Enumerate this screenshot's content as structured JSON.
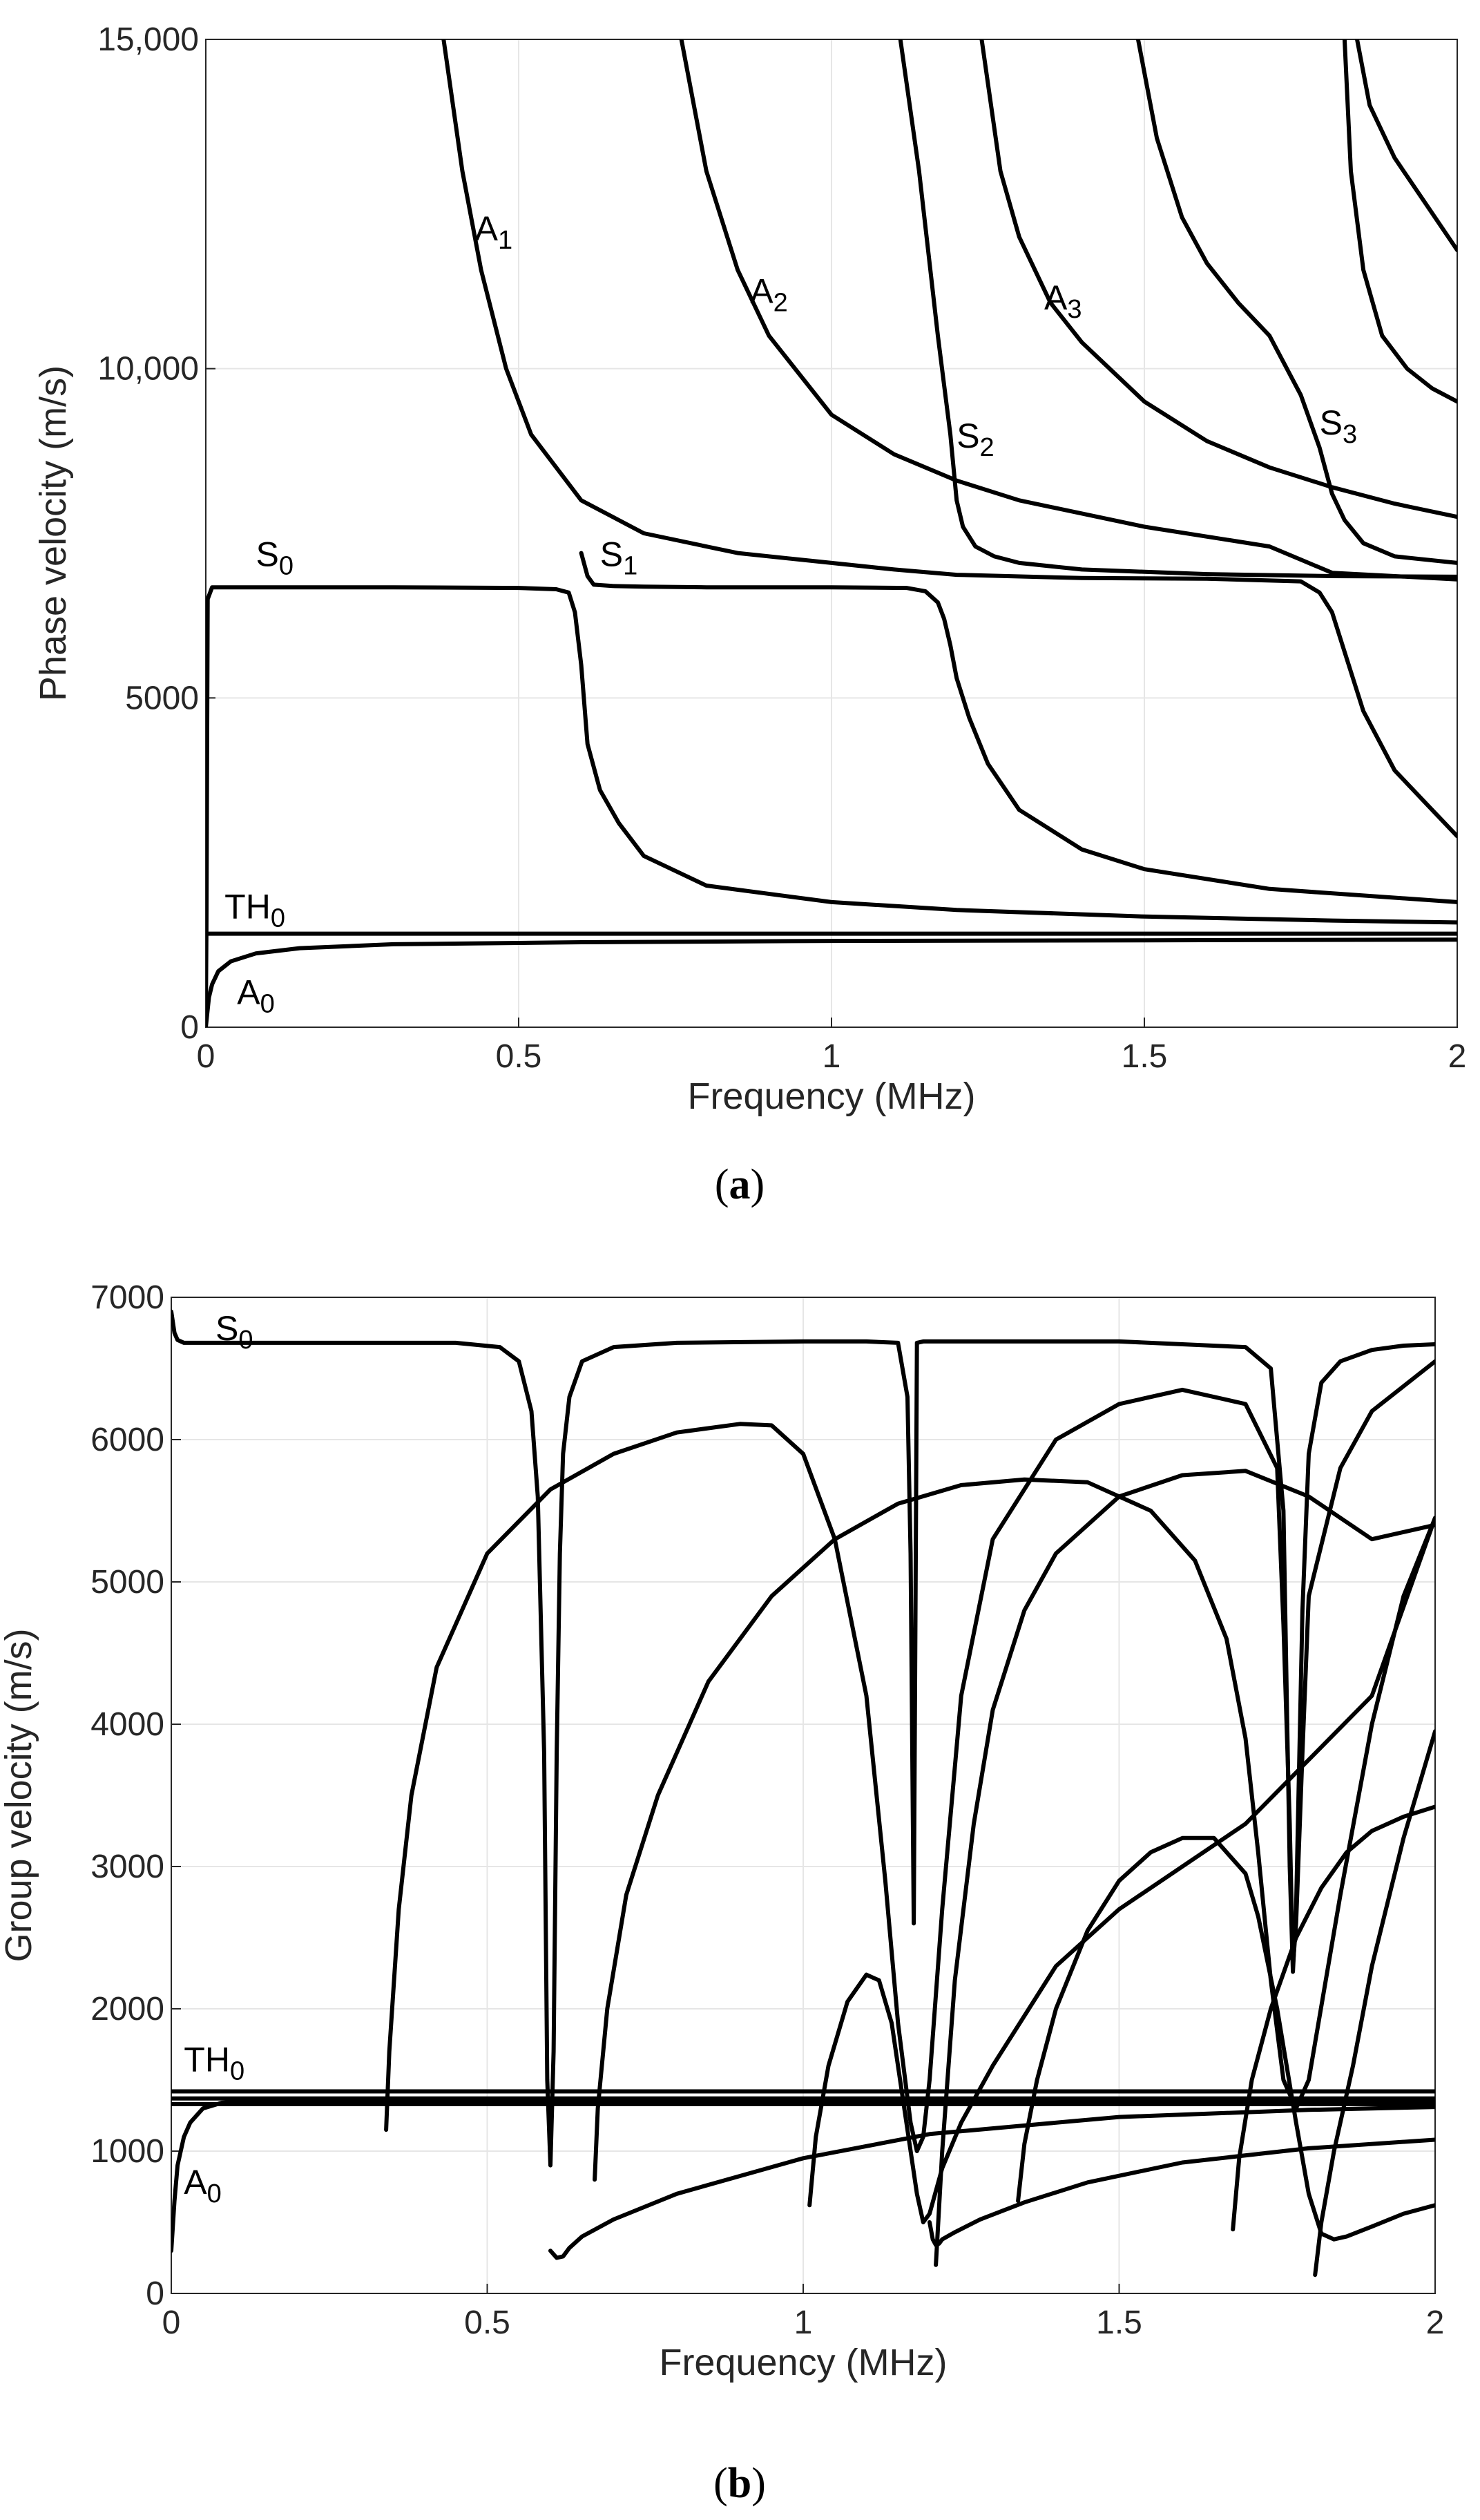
{
  "figure": {
    "panel_a_label": "a",
    "panel_b_label": "b"
  },
  "chart_data": [
    {
      "type": "line",
      "id": "a",
      "title": "",
      "xlabel": "Frequency (MHz)",
      "ylabel": "Phase velocity (m/s)",
      "xlim": [
        0,
        2
      ],
      "ylim": [
        0,
        15000
      ],
      "x_ticks": [
        0,
        0.5,
        1,
        1.5,
        2
      ],
      "x_tick_labels": [
        "0",
        "0.5",
        "1",
        "1.5",
        "2"
      ],
      "y_ticks": [
        0,
        5000,
        10000,
        15000
      ],
      "y_tick_labels": [
        "0",
        "5000",
        "10,000",
        "15,000"
      ],
      "grid": true,
      "series": [
        {
          "name": "S0",
          "x": [
            0,
            0.001,
            0.003,
            0.01,
            0.1,
            0.3,
            0.5,
            0.56,
            0.58,
            0.59,
            0.6,
            0.61,
            0.63,
            0.66,
            0.7,
            0.8,
            1.0,
            1.2,
            1.5,
            1.8,
            2.0
          ],
          "y": [
            100,
            1500,
            6500,
            6680,
            6680,
            6680,
            6670,
            6650,
            6600,
            6300,
            5500,
            4300,
            3600,
            3100,
            2600,
            2150,
            1900,
            1780,
            1680,
            1620,
            1590
          ]
        },
        {
          "name": "A0",
          "x": [
            0,
            0.005,
            0.01,
            0.02,
            0.04,
            0.08,
            0.15,
            0.3,
            0.6,
            1.0,
            1.5,
            2.0
          ],
          "y": [
            0,
            450,
            650,
            850,
            1000,
            1120,
            1200,
            1260,
            1290,
            1310,
            1320,
            1330
          ]
        },
        {
          "name": "TH0",
          "x": [
            0,
            2
          ],
          "y": [
            1420,
            1420
          ]
        },
        {
          "name": "S1",
          "x": [
            0.6,
            0.61,
            0.62,
            0.65,
            0.7,
            0.8,
            1.0,
            1.12,
            1.15,
            1.17,
            1.18,
            1.19,
            1.2,
            1.22,
            1.25,
            1.3,
            1.4,
            1.5,
            1.7,
            2.0
          ],
          "y": [
            7200,
            6850,
            6720,
            6700,
            6690,
            6680,
            6680,
            6670,
            6620,
            6450,
            6200,
            5800,
            5300,
            4700,
            4000,
            3300,
            2700,
            2400,
            2100,
            1900
          ]
        },
        {
          "name": "A1",
          "x": [
            0.38,
            0.41,
            0.44,
            0.48,
            0.52,
            0.6,
            0.7,
            0.85,
            1.0,
            1.1,
            1.2,
            1.4,
            1.6,
            1.75,
            1.78,
            1.8,
            1.82,
            1.85,
            1.9,
            1.95,
            2.0
          ],
          "y": [
            15000,
            13000,
            11500,
            10000,
            9000,
            8000,
            7500,
            7200,
            7050,
            6950,
            6870,
            6820,
            6810,
            6770,
            6600,
            6300,
            5700,
            4800,
            3900,
            3400,
            2900
          ]
        },
        {
          "name": "A2",
          "x": [
            0.76,
            0.8,
            0.85,
            0.9,
            1.0,
            1.1,
            1.2,
            1.3,
            1.5,
            1.7,
            1.75,
            1.8,
            1.9,
            2.0
          ],
          "y": [
            15000,
            13000,
            11500,
            10500,
            9300,
            8700,
            8300,
            8000,
            7600,
            7300,
            7100,
            6900,
            6850,
            6800
          ]
        },
        {
          "name": "S2",
          "x": [
            1.11,
            1.14,
            1.17,
            1.19,
            1.2,
            1.21,
            1.23,
            1.26,
            1.3,
            1.4,
            1.6,
            1.8,
            2.0
          ],
          "y": [
            15000,
            13000,
            10500,
            9000,
            8000,
            7600,
            7300,
            7150,
            7050,
            6950,
            6880,
            6850,
            6840
          ]
        },
        {
          "name": "A3",
          "x": [
            1.24,
            1.27,
            1.3,
            1.35,
            1.4,
            1.5,
            1.6,
            1.7,
            1.8,
            1.9,
            2.0
          ],
          "y": [
            15000,
            13000,
            12000,
            11000,
            10400,
            9500,
            8900,
            8500,
            8200,
            7950,
            7750
          ]
        },
        {
          "name": "S3",
          "x": [
            1.49,
            1.52,
            1.56,
            1.6,
            1.65,
            1.7,
            1.75,
            1.78,
            1.8,
            1.82,
            1.85,
            1.9,
            2.0
          ],
          "y": [
            15000,
            13500,
            12300,
            11600,
            11000,
            10500,
            9600,
            8800,
            8100,
            7700,
            7350,
            7150,
            7050
          ]
        },
        {
          "name": "mode-upper-1",
          "x": [
            1.82,
            1.83,
            1.85,
            1.88,
            1.92,
            1.96,
            2.0
          ],
          "y": [
            15000,
            13000,
            11500,
            10500,
            10000,
            9700,
            9500
          ]
        },
        {
          "name": "mode-upper-2",
          "x": [
            1.84,
            1.86,
            1.9,
            1.95,
            2.0
          ],
          "y": [
            15000,
            14000,
            13200,
            12500,
            11800
          ]
        }
      ],
      "annotations": [
        {
          "text": "A",
          "sub": "1",
          "x": 0.43,
          "y": 11950
        },
        {
          "text": "A",
          "sub": "2",
          "x": 0.87,
          "y": 11000
        },
        {
          "text": "A",
          "sub": "3",
          "x": 1.34,
          "y": 10900
        },
        {
          "text": "S",
          "sub": "2",
          "x": 1.2,
          "y": 8800
        },
        {
          "text": "S",
          "sub": "3",
          "x": 1.78,
          "y": 9000
        },
        {
          "text": "S",
          "sub": "0",
          "x": 0.08,
          "y": 7000
        },
        {
          "text": "S",
          "sub": "1",
          "x": 0.63,
          "y": 7000
        },
        {
          "text": "TH",
          "sub": "0",
          "x": 0.03,
          "y": 1650
        },
        {
          "text": "A",
          "sub": "0",
          "x": 0.05,
          "y": 350
        }
      ]
    },
    {
      "type": "line",
      "id": "b",
      "title": "",
      "xlabel": "Frequency (MHz)",
      "ylabel": "Group velocity (m/s)",
      "xlim": [
        0,
        2
      ],
      "ylim": [
        0,
        7000
      ],
      "x_ticks": [
        0,
        0.5,
        1,
        1.5,
        2
      ],
      "x_tick_labels": [
        "0",
        "0.5",
        "1",
        "1.5",
        "2"
      ],
      "y_ticks": [
        0,
        1000,
        2000,
        3000,
        4000,
        5000,
        6000,
        7000
      ],
      "y_tick_labels": [
        "0",
        "1000",
        "2000",
        "3000",
        "4000",
        "5000",
        "6000",
        "7000"
      ],
      "grid": true,
      "series": [
        {
          "name": "S0",
          "x": [
            0,
            0.005,
            0.01,
            0.02,
            0.1,
            0.3,
            0.45,
            0.52,
            0.55,
            0.57,
            0.58,
            0.59,
            0.595,
            0.6,
            0.605,
            0.61,
            0.615,
            0.62,
            0.63,
            0.65,
            0.7,
            0.8,
            1.0,
            1.1,
            1.15,
            1.165,
            1.17,
            1.175,
            1.18,
            1.19,
            1.2,
            1.5,
            1.7,
            1.74,
            1.76,
            1.77,
            1.775,
            1.78,
            1.79,
            1.8,
            1.82,
            1.85,
            1.9,
            1.95,
            2.0
          ],
          "y": [
            6900,
            6750,
            6700,
            6680,
            6680,
            6680,
            6680,
            6650,
            6550,
            6200,
            5600,
            3800,
            1500,
            900,
            1700,
            3800,
            5200,
            5900,
            6300,
            6550,
            6650,
            6680,
            6690,
            6690,
            6680,
            6300,
            5200,
            2600,
            6680,
            6690,
            6690,
            6690,
            6650,
            6500,
            5500,
            3000,
            2260,
            2700,
            4800,
            5900,
            6400,
            6550,
            6630,
            6660,
            6670
          ]
        },
        {
          "name": "A0",
          "x": [
            0,
            0.005,
            0.01,
            0.02,
            0.03,
            0.05,
            0.08,
            0.12,
            0.2,
            0.3,
            0.5,
            0.7,
            1.0,
            1.5,
            2.0
          ],
          "y": [
            300,
            650,
            900,
            1100,
            1200,
            1300,
            1340,
            1355,
            1355,
            1355,
            1352,
            1350,
            1350,
            1350,
            1350
          ]
        },
        {
          "name": "TH0",
          "x": [
            0,
            2
          ],
          "y": [
            1420,
            1420
          ]
        },
        {
          "name": "mode-flat-3",
          "x": [
            0,
            2
          ],
          "y": [
            1370,
            1370
          ]
        },
        {
          "name": "mode-flat-4",
          "x": [
            0,
            2
          ],
          "y": [
            1330,
            1330
          ]
        },
        {
          "name": "A1",
          "x": [
            0.34,
            0.345,
            0.36,
            0.38,
            0.42,
            0.5,
            0.6,
            0.7,
            0.8,
            0.9,
            0.95,
            1.0,
            1.05,
            1.1,
            1.13,
            1.15,
            1.17,
            1.18,
            1.19,
            1.2,
            1.22,
            1.25,
            1.3,
            1.4,
            1.5,
            1.6,
            1.7,
            1.75,
            1.76,
            1.77,
            1.775,
            1.78,
            1.79,
            1.8,
            1.85,
            1.9,
            2.0
          ],
          "y": [
            1150,
            1700,
            2700,
            3500,
            4400,
            5200,
            5650,
            5900,
            6050,
            6110,
            6100,
            5900,
            5300,
            4200,
            2900,
            1900,
            1200,
            1000,
            1100,
            1500,
            2700,
            4200,
            5300,
            6000,
            6250,
            6350,
            6250,
            5800,
            4700,
            3300,
            2300,
            2600,
            3800,
            4900,
            5800,
            6200,
            6550
          ]
        },
        {
          "name": "S1",
          "x": [
            0.6,
            0.61,
            0.62,
            0.63,
            0.65,
            0.7,
            0.8,
            1.0,
            1.2,
            1.5,
            1.8,
            2.0
          ],
          "y": [
            300,
            250,
            260,
            320,
            400,
            520,
            700,
            950,
            1120,
            1240,
            1290,
            1310
          ]
        },
        {
          "name": "A2",
          "x": [
            0.67,
            0.675,
            0.69,
            0.72,
            0.77,
            0.85,
            0.95,
            1.05,
            1.15,
            1.25,
            1.35,
            1.45,
            1.55,
            1.62,
            1.67,
            1.7,
            1.72,
            1.74,
            1.76,
            1.78,
            1.8,
            1.85,
            1.9,
            1.95,
            2.0
          ],
          "y": [
            800,
            1300,
            2000,
            2800,
            3500,
            4300,
            4900,
            5300,
            5550,
            5680,
            5720,
            5700,
            5500,
            5150,
            4600,
            3900,
            3100,
            2200,
            1500,
            1300,
            1500,
            2800,
            4000,
            4900,
            5450
          ]
        },
        {
          "name": "mode-b-1",
          "x": [
            1.01,
            1.02,
            1.04,
            1.07,
            1.1,
            1.12,
            1.14,
            1.16,
            1.18,
            1.19,
            1.2,
            1.22,
            1.25,
            1.3,
            1.4,
            1.5,
            1.7,
            1.9,
            2.0
          ],
          "y": [
            620,
            1100,
            1600,
            2050,
            2240,
            2200,
            1900,
            1300,
            700,
            500,
            560,
            880,
            1200,
            1600,
            2300,
            2700,
            3300,
            4200,
            5450
          ]
        },
        {
          "name": "S2",
          "x": [
            1.2,
            1.205,
            1.21,
            1.215,
            1.22,
            1.24,
            1.28,
            1.35,
            1.45,
            1.6,
            1.8,
            2.0
          ],
          "y": [
            500,
            380,
            340,
            350,
            380,
            430,
            520,
            640,
            780,
            920,
            1020,
            1080
          ]
        },
        {
          "name": "A3",
          "x": [
            1.21,
            1.22,
            1.24,
            1.27,
            1.3,
            1.35,
            1.4,
            1.5,
            1.6,
            1.7,
            1.8,
            1.9,
            2.0
          ],
          "y": [
            200,
            1000,
            2200,
            3300,
            4100,
            4800,
            5200,
            5600,
            5750,
            5780,
            5600,
            5300,
            5400
          ]
        },
        {
          "name": "S3",
          "x": [
            1.34,
            1.35,
            1.37,
            1.4,
            1.45,
            1.5,
            1.55,
            1.6,
            1.65,
            1.7,
            1.72,
            1.75,
            1.78,
            1.8,
            1.82
          ],
          "y": [
            650,
            1050,
            1500,
            2000,
            2550,
            2900,
            3100,
            3200,
            3200,
            2950,
            2650,
            2000,
            1200,
            700,
            420
          ]
        },
        {
          "name": "mode-b-2",
          "x": [
            1.68,
            1.69,
            1.71,
            1.74,
            1.78,
            1.82,
            1.86,
            1.9,
            1.95,
            2.0
          ],
          "y": [
            450,
            950,
            1500,
            2000,
            2500,
            2850,
            3100,
            3250,
            3350,
            3420
          ]
        },
        {
          "name": "mode-b-3",
          "x": [
            1.81,
            1.82,
            1.84,
            1.87,
            1.9,
            1.95,
            2.0
          ],
          "y": [
            130,
            500,
            1000,
            1600,
            2300,
            3200,
            3950
          ]
        },
        {
          "name": "mode-b-4",
          "x": [
            1.82,
            1.84,
            1.86,
            1.9,
            1.95,
            2.0
          ],
          "y": [
            420,
            380,
            400,
            470,
            560,
            620
          ]
        }
      ],
      "annotations": [
        {
          "text": "S",
          "sub": "0",
          "x": 0.07,
          "y": 6700
        },
        {
          "text": "TH",
          "sub": "0",
          "x": 0.02,
          "y": 1560
        },
        {
          "text": "A",
          "sub": "0",
          "x": 0.02,
          "y": 700
        }
      ]
    }
  ]
}
